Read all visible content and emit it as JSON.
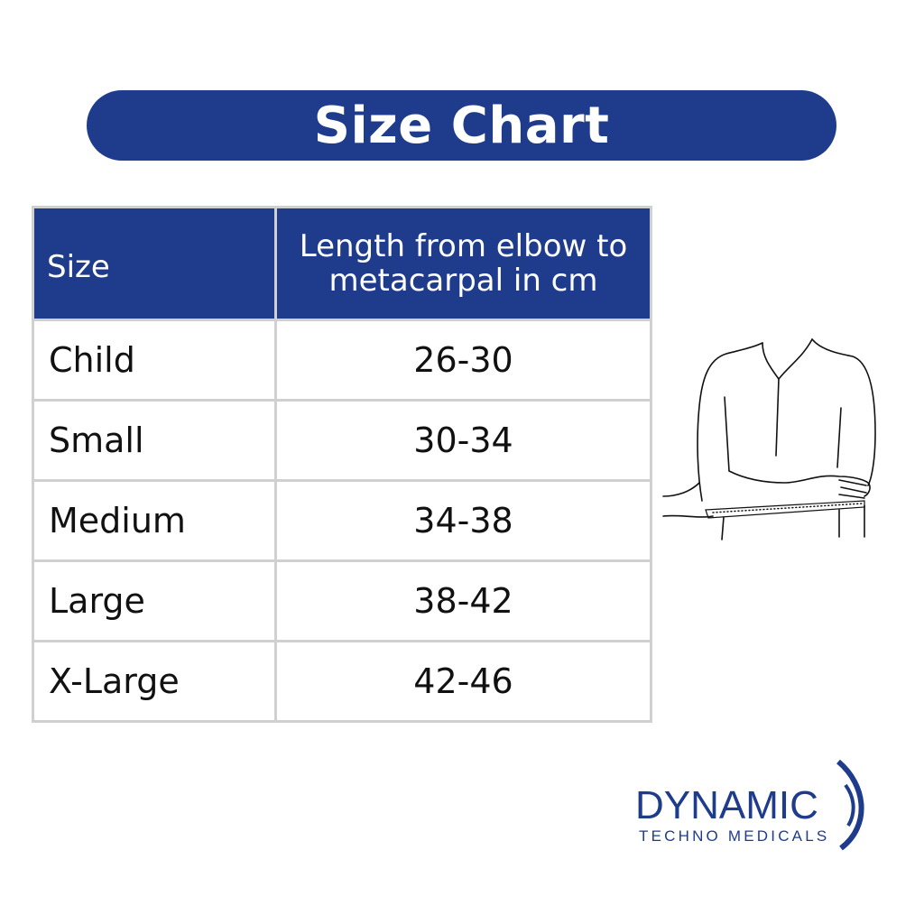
{
  "title": "Size Chart",
  "table": {
    "headers": [
      "Size",
      "Length from elbow to metacarpal in cm"
    ],
    "rows": [
      {
        "size": "Child",
        "range": "26-30"
      },
      {
        "size": "Small",
        "range": "30-34"
      },
      {
        "size": "Medium",
        "range": "34-38"
      },
      {
        "size": "Large",
        "range": "38-42"
      },
      {
        "size": "X-Large",
        "range": "42-46"
      }
    ]
  },
  "brand": {
    "name": "DYNAMIC",
    "tagline": "TECHNO MEDICALS"
  },
  "colors": {
    "accent": "#1f3c8c",
    "border": "#d0d0d0"
  }
}
